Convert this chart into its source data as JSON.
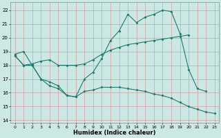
{
  "xlabel": "Humidex (Indice chaleur)",
  "background_color": "#cbe8e4",
  "grid_color": "#b0d8d2",
  "line_color": "#1a7a6e",
  "xlim": [
    -0.5,
    23.5
  ],
  "ylim": [
    13.8,
    22.6
  ],
  "yticks": [
    14,
    15,
    16,
    17,
    18,
    19,
    20,
    21,
    22
  ],
  "xticks": [
    0,
    1,
    2,
    3,
    4,
    5,
    6,
    7,
    8,
    9,
    10,
    11,
    12,
    13,
    14,
    15,
    16,
    17,
    18,
    19,
    20,
    21,
    22,
    23
  ],
  "line1_x": [
    0,
    1,
    2,
    3,
    4,
    5,
    6,
    7,
    8,
    9,
    10,
    11,
    12,
    13,
    14,
    15,
    16,
    17,
    18,
    19,
    20,
    21,
    22
  ],
  "line1_y": [
    18.8,
    19.0,
    18.0,
    17.0,
    16.8,
    16.5,
    15.8,
    15.7,
    17.0,
    17.5,
    18.5,
    19.8,
    20.5,
    21.7,
    21.1,
    21.5,
    21.7,
    22.0,
    21.9,
    20.3,
    17.7,
    16.3,
    16.1
  ],
  "line2_x": [
    0,
    1,
    2,
    3,
    4,
    5,
    6,
    7,
    8,
    9,
    10,
    11,
    12,
    13,
    14,
    15,
    16,
    17,
    18,
    19,
    20
  ],
  "line2_y": [
    18.7,
    18.0,
    18.1,
    18.3,
    18.4,
    18.0,
    18.0,
    18.0,
    18.1,
    18.4,
    18.8,
    19.1,
    19.3,
    19.5,
    19.6,
    19.7,
    19.8,
    19.9,
    20.0,
    20.1,
    20.2
  ],
  "line3_x": [
    0,
    1,
    2,
    3,
    4,
    5,
    6,
    7,
    8,
    9,
    10,
    11,
    12,
    13,
    14,
    15,
    16,
    17,
    18,
    19,
    20,
    21,
    22,
    23
  ],
  "line3_y": [
    18.7,
    18.0,
    18.0,
    17.0,
    16.5,
    16.3,
    15.8,
    15.7,
    16.1,
    16.2,
    16.4,
    16.4,
    16.4,
    16.3,
    16.2,
    16.1,
    15.9,
    15.8,
    15.6,
    15.3,
    15.0,
    14.8,
    14.6,
    14.5
  ]
}
